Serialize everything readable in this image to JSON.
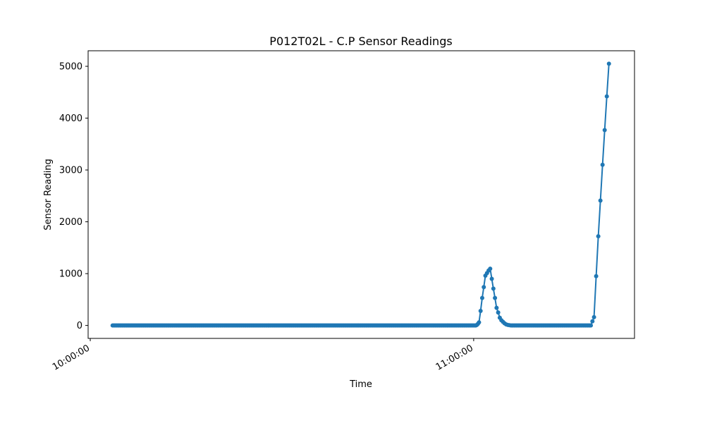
{
  "chart_data": {
    "type": "line",
    "title": "P012T02L - C.P Sensor Readings",
    "xlabel": "Time",
    "ylabel": "Sensor Reading",
    "x_axis": "time",
    "xlim": [
      "09:59:40",
      "11:25:10"
    ],
    "ylim": [
      -250,
      5300
    ],
    "grid": false,
    "x_ticks": [
      "10:00:00",
      "11:00:00"
    ],
    "y_ticks": [
      0,
      1000,
      2000,
      3000,
      4000,
      5000
    ],
    "series_color": "#1f77b4",
    "series": [
      {
        "baseline_time_range": [
          "10:03:30",
          "11:00:20"
        ],
        "baseline_step_seconds": 10,
        "baseline_value": 0,
        "points": [
          {
            "t": "11:00:30",
            "v": 10
          },
          {
            "t": "11:00:40",
            "v": 30
          },
          {
            "t": "11:00:50",
            "v": 60
          },
          {
            "t": "11:01:05",
            "v": 280
          },
          {
            "t": "11:01:20",
            "v": 530
          },
          {
            "t": "11:01:35",
            "v": 740
          },
          {
            "t": "11:01:50",
            "v": 960
          },
          {
            "t": "11:02:05",
            "v": 1010
          },
          {
            "t": "11:02:20",
            "v": 1060
          },
          {
            "t": "11:02:35",
            "v": 1095
          },
          {
            "t": "11:02:50",
            "v": 900
          },
          {
            "t": "11:03:05",
            "v": 710
          },
          {
            "t": "11:03:20",
            "v": 530
          },
          {
            "t": "11:03:35",
            "v": 340
          },
          {
            "t": "11:03:50",
            "v": 250
          },
          {
            "t": "11:04:05",
            "v": 150
          },
          {
            "t": "11:04:20",
            "v": 100
          },
          {
            "t": "11:04:35",
            "v": 70
          },
          {
            "t": "11:04:50",
            "v": 40
          },
          {
            "t": "11:05:05",
            "v": 20
          },
          {
            "t": "11:05:20",
            "v": 10
          },
          {
            "t": "11:05:35",
            "v": 5
          },
          {
            "t": "11:05:50",
            "v": 0
          }
        ],
        "baseline2_time_range": [
          "11:06:00",
          "11:18:10"
        ],
        "points_end": [
          {
            "t": "11:18:20",
            "v": 0
          },
          {
            "t": "11:18:35",
            "v": 80
          },
          {
            "t": "11:18:50",
            "v": 160
          },
          {
            "t": "11:19:10",
            "v": 950
          },
          {
            "t": "11:19:30",
            "v": 1720
          },
          {
            "t": "11:19:50",
            "v": 2410
          },
          {
            "t": "11:20:10",
            "v": 3100
          },
          {
            "t": "11:20:30",
            "v": 3770
          },
          {
            "t": "11:20:50",
            "v": 4420
          },
          {
            "t": "11:21:10",
            "v": 5050
          }
        ]
      }
    ]
  }
}
